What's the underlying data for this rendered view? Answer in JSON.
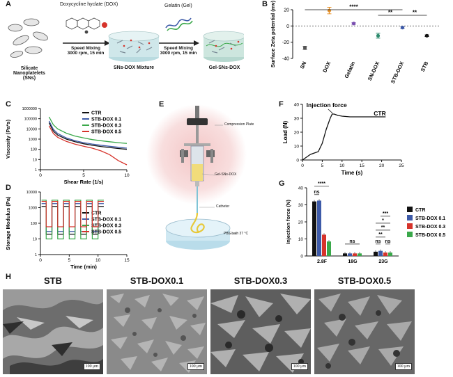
{
  "panel_labels": {
    "A": "A",
    "B": "B",
    "C": "C",
    "D": "D",
    "E": "E",
    "F": "F",
    "G": "G",
    "H": "H"
  },
  "panelA": {
    "dox_label": "Doxycycline hyclate (DOX)",
    "gel_label": "Gelatin (Gel)",
    "mix1_line1": "Speed Mixing",
    "mix1_line2": "3000 rpm, 15 min",
    "mix2_line1": "Speed Mixing",
    "mix2_line2": "3000 rpm, 15 min",
    "sn_line1": "Silicate",
    "sn_line2": "Nanoplatelets",
    "sn_line3": "(SNs)",
    "mixture_label": "SNs-DOX Mixture",
    "final_label": "Gel-SNs-DOX"
  },
  "panelE": {
    "compression": "Compression Plate",
    "gel": "Gel-SNs-DOX",
    "catheter": "Catheter",
    "bath": "PBS bath 37 °C"
  },
  "sem": {
    "titles": [
      "STB",
      "STB-DOX0.1",
      "STB-DOX0.3",
      "STB-DOX0.5"
    ],
    "scale": "100 μm"
  },
  "chart_data": [
    {
      "id": "B",
      "type": "scatter",
      "ylabel": "Surface Zeta potential (mv)",
      "categories": [
        "SN",
        "DOX",
        "Gelatin",
        "SN-DOX",
        "STB-DOX",
        "STB"
      ],
      "values": [
        -27,
        19,
        3,
        -12,
        -2,
        -12
      ],
      "errors": [
        2,
        4,
        1,
        3,
        1,
        1
      ],
      "colors": [
        "#555555",
        "#e8922a",
        "#7a4fb0",
        "#2e8b6e",
        "#3d5aa8",
        "#111111"
      ],
      "ylim": [
        -40,
        20
      ],
      "yticks": [
        -40,
        -20,
        0,
        20
      ],
      "significance": [
        {
          "from": 0,
          "to": 4,
          "label": "****"
        },
        {
          "from": 3,
          "to": 4,
          "label": "**"
        },
        {
          "from": 4,
          "to": 5,
          "label": "**"
        }
      ]
    },
    {
      "id": "C",
      "type": "line",
      "xlabel": "Shear Rate (1/s)",
      "ylabel": "Viscosity (Pa*s)",
      "xlim": [
        0,
        10
      ],
      "xticks": [
        0,
        5,
        10
      ],
      "ylog": true,
      "ylim": [
        1,
        1000000
      ],
      "ytick_labels": [
        "1000000",
        "100000",
        "10000",
        "1000",
        "100",
        "10",
        "1"
      ],
      "series": [
        {
          "name": "CTR",
          "color": "#111111",
          "x": [
            1,
            1.5,
            2,
            3,
            4,
            5,
            6,
            7,
            8,
            9,
            10
          ],
          "y": [
            40000,
            6000,
            2500,
            1000,
            550,
            350,
            250,
            190,
            150,
            120,
            100
          ]
        },
        {
          "name": "STB-DOX 0.1",
          "color": "#3d5aa8",
          "x": [
            1,
            1.5,
            2,
            3,
            4,
            5,
            6,
            7,
            8,
            9,
            10
          ],
          "y": [
            60000,
            9000,
            3500,
            1300,
            700,
            450,
            330,
            250,
            200,
            160,
            130
          ]
        },
        {
          "name": "STB-DOX 0.3",
          "color": "#3aa84a",
          "x": [
            1,
            1.5,
            2,
            3,
            4,
            5,
            6,
            7,
            8,
            9,
            10
          ],
          "y": [
            150000,
            25000,
            10000,
            3800,
            2000,
            1300,
            900,
            700,
            550,
            450,
            380
          ]
        },
        {
          "name": "STB-DOX 0.5",
          "color": "#d6332b",
          "x": [
            1,
            1.5,
            2,
            3,
            4,
            5,
            6,
            7,
            8,
            9,
            10
          ],
          "y": [
            20000,
            3500,
            1500,
            600,
            320,
            200,
            130,
            70,
            30,
            8,
            3
          ]
        }
      ]
    },
    {
      "id": "D",
      "type": "line",
      "xlabel": "Time (min)",
      "ylabel": "Storage Modulus (Pa)",
      "xlim": [
        0,
        15
      ],
      "xticks": [
        0,
        5,
        10,
        15
      ],
      "ylog": true,
      "ylim": [
        1,
        10000
      ],
      "ytick_labels": [
        "10000",
        "1000",
        "100",
        "10",
        "1"
      ],
      "series": [
        {
          "name": "CTR",
          "color": "#111111",
          "high": 1200,
          "low": 20
        },
        {
          "name": "STB-DOX 0.1",
          "color": "#3d5aa8",
          "high": 1800,
          "low": 30
        },
        {
          "name": "STB-DOX 0.3",
          "color": "#3aa84a",
          "high": 3000,
          "low": 10
        },
        {
          "name": "STB-DOX 0.5",
          "color": "#d6332b",
          "high": 2500,
          "low": 60
        }
      ]
    },
    {
      "id": "F",
      "type": "line",
      "xlabel": "Time (s)",
      "ylabel": "Load (N)",
      "xlim": [
        0,
        25
      ],
      "xticks": [
        0,
        5,
        10,
        15,
        20,
        25
      ],
      "ylim": [
        0,
        40
      ],
      "yticks": [
        0,
        10,
        20,
        30,
        40
      ],
      "annotation": "Injection force",
      "series": [
        {
          "name": "CTR",
          "color": "#111111",
          "x": [
            0,
            1,
            2,
            3,
            4,
            5,
            6,
            7,
            7.5,
            8,
            9,
            10,
            12,
            15,
            18,
            21
          ],
          "y": [
            0,
            2,
            4,
            5,
            6,
            12,
            22,
            30,
            33,
            33,
            32,
            31.5,
            31,
            31,
            31,
            31
          ]
        }
      ]
    },
    {
      "id": "G",
      "type": "bar",
      "ylabel": "Injection force (N)",
      "categories": [
        "2.8F",
        "18G",
        "23G"
      ],
      "ylim": [
        0,
        40
      ],
      "yticks": [
        0,
        10,
        20,
        30,
        40
      ],
      "series": [
        {
          "name": "CTR",
          "color": "#111111",
          "values": [
            32,
            1.5,
            2.5
          ]
        },
        {
          "name": "STB-DOX 0.1",
          "color": "#3d5aa8",
          "values": [
            32.5,
            1.5,
            3
          ]
        },
        {
          "name": "STB-DOX 0.3",
          "color": "#d6332b",
          "values": [
            12.5,
            1.5,
            2
          ]
        },
        {
          "name": "STB-DOX 0.5",
          "color": "#3aa84a",
          "values": [
            8.5,
            1.5,
            2
          ]
        }
      ],
      "significance": [
        {
          "group": 0,
          "from": 0,
          "to": 1,
          "level": 0,
          "label": "ns"
        },
        {
          "group": 0,
          "from": 0,
          "to": 3,
          "level": 1,
          "label": "****"
        },
        {
          "group": 1,
          "from": 0,
          "to": 3,
          "level": 0,
          "label": "ns"
        },
        {
          "group": 2,
          "from": 0,
          "to": 1,
          "level": 0,
          "label": "ns"
        },
        {
          "group": 2,
          "from": 2,
          "to": 3,
          "level": 0,
          "label": "ns"
        },
        {
          "group": 2,
          "from": 0,
          "to": 2,
          "level": 1,
          "label": "**"
        },
        {
          "group": 2,
          "from": 0,
          "to": 3,
          "level": 2,
          "label": "**"
        },
        {
          "group": 2,
          "from": 0,
          "to": 3,
          "level": 3,
          "label": "*"
        },
        {
          "group": 2,
          "from": 1,
          "to": 3,
          "level": 4,
          "label": "***"
        }
      ]
    }
  ]
}
